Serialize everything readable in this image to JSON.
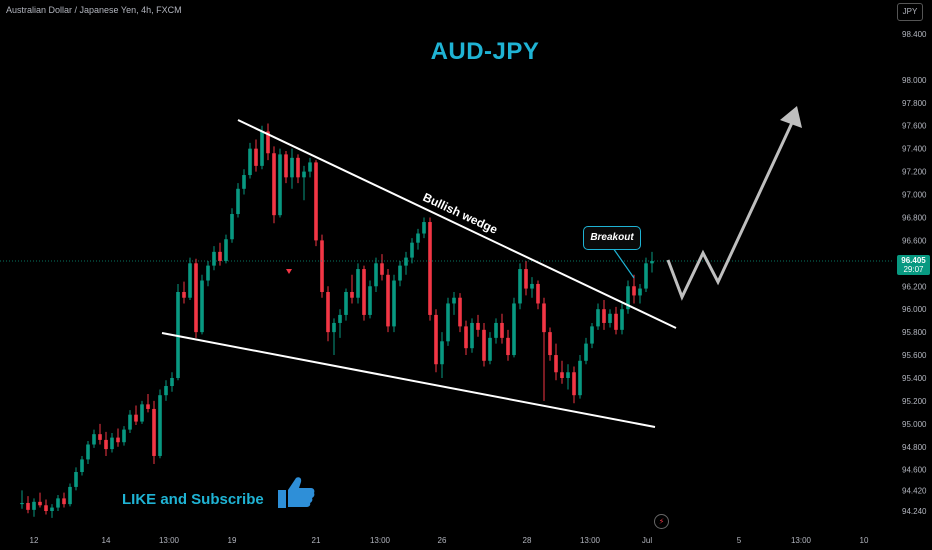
{
  "header": {
    "symbol_label": "Australian Dollar / Japanese Yen, 4h, FXCM",
    "currency_button": "JPY"
  },
  "title": "AUD-JPY",
  "annotations": {
    "pattern_label": "Bullish wedge",
    "breakout_label": "Breakout",
    "cta_text": "LIKE and Subscribe"
  },
  "price_tag": {
    "price": "96.405",
    "countdown": "29:07"
  },
  "colors": {
    "up": "#089981",
    "down": "#f23645",
    "accent": "#1fb3d4",
    "thumb": "#2e8fd8",
    "background": "#000000"
  },
  "chart_data": {
    "type": "candlestick",
    "y_axis": {
      "ticks": [
        "98.400",
        "98.000",
        "97.800",
        "97.600",
        "97.400",
        "97.200",
        "97.000",
        "96.800",
        "96.600",
        "96.200",
        "96.000",
        "95.800",
        "95.600",
        "95.400",
        "95.200",
        "95.000",
        "94.800",
        "94.600",
        "94.420",
        "94.240"
      ],
      "ylim": [
        94.17,
        98.55
      ]
    },
    "x_axis": {
      "ticks": [
        "12",
        "14",
        "13:00",
        "19",
        "21",
        "13:00",
        "26",
        "28",
        "13:00",
        "Jul",
        "5",
        "13:00",
        "10"
      ]
    },
    "current_price": 96.405,
    "candles": [
      [
        94.3,
        94.42,
        94.26,
        94.31
      ],
      [
        94.31,
        94.37,
        94.22,
        94.25
      ],
      [
        94.25,
        94.35,
        94.19,
        94.32
      ],
      [
        94.32,
        94.4,
        94.27,
        94.29
      ],
      [
        94.29,
        94.34,
        94.21,
        94.24
      ],
      [
        94.24,
        94.3,
        94.18,
        94.27
      ],
      [
        94.27,
        94.38,
        94.24,
        94.35
      ],
      [
        94.35,
        94.4,
        94.27,
        94.3
      ],
      [
        94.3,
        94.48,
        94.28,
        94.45
      ],
      [
        94.45,
        94.62,
        94.42,
        94.58
      ],
      [
        94.58,
        94.72,
        94.55,
        94.69
      ],
      [
        94.69,
        94.85,
        94.65,
        94.82
      ],
      [
        94.82,
        94.95,
        94.79,
        94.91
      ],
      [
        94.91,
        95.0,
        94.82,
        94.86
      ],
      [
        94.86,
        94.93,
        94.72,
        94.78
      ],
      [
        94.78,
        94.92,
        94.75,
        94.88
      ],
      [
        94.88,
        94.96,
        94.8,
        94.84
      ],
      [
        94.84,
        94.98,
        94.81,
        94.95
      ],
      [
        94.95,
        95.12,
        94.92,
        95.08
      ],
      [
        95.08,
        95.16,
        94.99,
        95.02
      ],
      [
        95.02,
        95.2,
        95.0,
        95.17
      ],
      [
        95.17,
        95.26,
        95.1,
        95.13
      ],
      [
        95.13,
        95.2,
        94.65,
        94.72
      ],
      [
        94.72,
        95.3,
        94.7,
        95.25
      ],
      [
        95.25,
        95.38,
        95.2,
        95.33
      ],
      [
        95.33,
        95.45,
        95.28,
        95.4
      ],
      [
        95.4,
        96.22,
        95.38,
        96.15
      ],
      [
        96.15,
        96.24,
        96.05,
        96.1
      ],
      [
        96.1,
        96.45,
        96.08,
        96.4
      ],
      [
        96.4,
        96.44,
        95.75,
        95.8
      ],
      [
        95.8,
        96.3,
        95.78,
        96.25
      ],
      [
        96.25,
        96.42,
        96.2,
        96.38
      ],
      [
        96.38,
        96.55,
        96.34,
        96.5
      ],
      [
        96.5,
        96.58,
        96.38,
        96.42
      ],
      [
        96.42,
        96.65,
        96.4,
        96.61
      ],
      [
        96.61,
        96.88,
        96.58,
        96.83
      ],
      [
        96.83,
        97.1,
        96.8,
        97.05
      ],
      [
        97.05,
        97.22,
        97.0,
        97.17
      ],
      [
        97.17,
        97.45,
        97.14,
        97.4
      ],
      [
        97.4,
        97.48,
        97.2,
        97.25
      ],
      [
        97.25,
        97.6,
        97.22,
        97.55
      ],
      [
        97.55,
        97.62,
        97.3,
        97.36
      ],
      [
        97.36,
        97.42,
        96.75,
        96.82
      ],
      [
        96.82,
        97.4,
        96.8,
        97.35
      ],
      [
        97.35,
        97.38,
        97.1,
        97.15
      ],
      [
        97.15,
        97.4,
        97.05,
        97.32
      ],
      [
        97.32,
        97.35,
        97.1,
        97.15
      ],
      [
        97.15,
        97.25,
        96.95,
        97.2
      ],
      [
        97.2,
        97.32,
        97.15,
        97.28
      ],
      [
        97.28,
        97.3,
        96.55,
        96.6
      ],
      [
        96.6,
        96.65,
        96.1,
        96.15
      ],
      [
        96.15,
        96.2,
        95.72,
        95.8
      ],
      [
        95.8,
        95.92,
        95.6,
        95.88
      ],
      [
        95.88,
        96.0,
        95.75,
        95.95
      ],
      [
        95.95,
        96.18,
        95.9,
        96.15
      ],
      [
        96.15,
        96.3,
        96.05,
        96.1
      ],
      [
        96.1,
        96.4,
        96.05,
        96.35
      ],
      [
        96.35,
        96.38,
        95.9,
        95.95
      ],
      [
        95.95,
        96.25,
        95.92,
        96.2
      ],
      [
        96.2,
        96.45,
        96.15,
        96.4
      ],
      [
        96.4,
        96.48,
        96.25,
        96.3
      ],
      [
        96.3,
        96.35,
        95.8,
        95.85
      ],
      [
        95.85,
        96.3,
        95.8,
        96.25
      ],
      [
        96.25,
        96.42,
        96.2,
        96.38
      ],
      [
        96.38,
        96.5,
        96.3,
        96.45
      ],
      [
        96.45,
        96.62,
        96.4,
        96.58
      ],
      [
        96.58,
        96.7,
        96.52,
        96.66
      ],
      [
        96.66,
        96.8,
        96.62,
        96.76
      ],
      [
        96.76,
        96.8,
        95.9,
        95.95
      ],
      [
        95.95,
        96.0,
        95.45,
        95.52
      ],
      [
        95.52,
        95.8,
        95.4,
        95.72
      ],
      [
        95.72,
        96.1,
        95.68,
        96.05
      ],
      [
        96.05,
        96.15,
        95.95,
        96.1
      ],
      [
        96.1,
        96.14,
        95.8,
        95.85
      ],
      [
        95.85,
        95.9,
        95.6,
        95.66
      ],
      [
        95.66,
        95.92,
        95.62,
        95.88
      ],
      [
        95.88,
        95.95,
        95.76,
        95.82
      ],
      [
        95.82,
        95.88,
        95.5,
        95.55
      ],
      [
        95.55,
        95.8,
        95.52,
        95.75
      ],
      [
        95.75,
        95.92,
        95.7,
        95.88
      ],
      [
        95.88,
        95.96,
        95.7,
        95.75
      ],
      [
        95.75,
        95.82,
        95.55,
        95.6
      ],
      [
        95.6,
        96.1,
        95.58,
        96.05
      ],
      [
        96.05,
        96.4,
        96.0,
        96.35
      ],
      [
        96.35,
        96.42,
        96.12,
        96.18
      ],
      [
        96.18,
        96.28,
        96.1,
        96.22
      ],
      [
        96.22,
        96.25,
        96.0,
        96.05
      ],
      [
        96.05,
        96.1,
        95.2,
        95.8
      ],
      [
        95.8,
        95.84,
        95.55,
        95.6
      ],
      [
        95.6,
        95.7,
        95.38,
        95.45
      ],
      [
        95.45,
        95.55,
        95.35,
        95.4
      ],
      [
        95.4,
        95.52,
        95.3,
        95.45
      ],
      [
        95.45,
        95.5,
        95.18,
        95.25
      ],
      [
        95.25,
        95.6,
        95.22,
        95.55
      ],
      [
        95.55,
        95.75,
        95.52,
        95.7
      ],
      [
        95.7,
        95.88,
        95.66,
        95.85
      ],
      [
        95.85,
        96.05,
        95.82,
        96.0
      ],
      [
        96.0,
        96.08,
        95.82,
        95.88
      ],
      [
        95.88,
        96.0,
        95.84,
        95.96
      ],
      [
        95.96,
        96.02,
        95.78,
        95.82
      ],
      [
        95.82,
        96.05,
        95.78,
        96.0
      ],
      [
        96.0,
        96.25,
        95.96,
        96.2
      ],
      [
        96.2,
        96.3,
        96.05,
        96.12
      ],
      [
        96.12,
        96.22,
        96.05,
        96.18
      ],
      [
        96.18,
        96.45,
        96.15,
        96.4
      ],
      [
        96.4,
        96.5,
        96.32,
        96.42
      ]
    ],
    "trendlines": [
      {
        "from": [
          "19",
          97.64
        ],
        "to": [
          "Jul",
          95.84
        ]
      },
      {
        "from": [
          "14",
          95.79
        ],
        "to": [
          "Jul",
          94.98
        ]
      }
    ],
    "projection": [
      96.35,
      96.08,
      96.4,
      96.1,
      97.75
    ]
  }
}
